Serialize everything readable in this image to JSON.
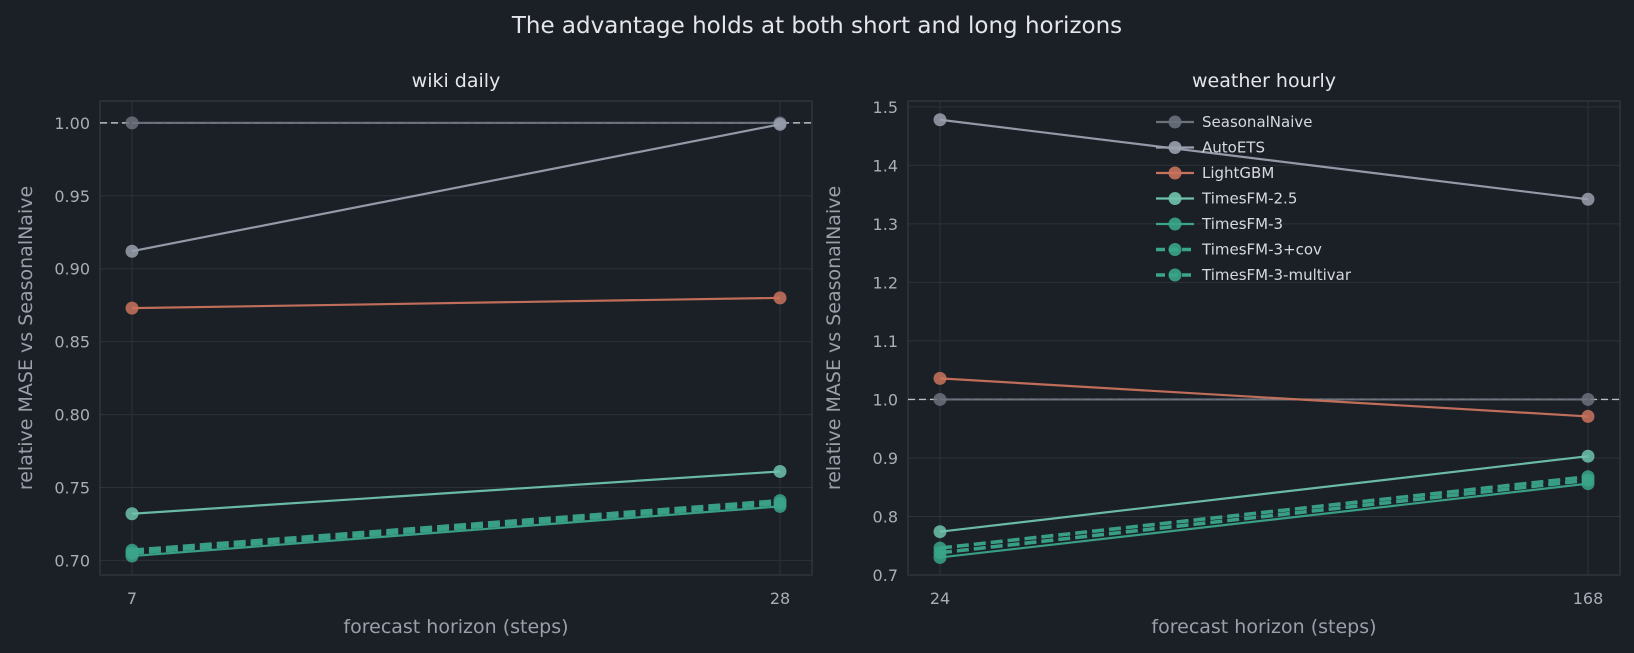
{
  "figure": {
    "title": "The advantage holds at both short and long horizons"
  },
  "colors": {
    "background": "#1b1f26",
    "grid": "#2c313a",
    "spine": "#3a3f48",
    "SeasonalNaive": "#6c717c",
    "AutoETS": "#9aa0ae",
    "LightGBM": "#c9735d",
    "TimesFM-2.5": "#6fc3ad",
    "TimesFM-3": "#3aa58a"
  },
  "chart_data": [
    {
      "type": "line",
      "title": "wiki daily",
      "xlabel": "forecast horizon (steps)",
      "ylabel": "relative MASE vs SeasonalNaive",
      "x": [
        7,
        28
      ],
      "xticks": [
        "7",
        "28"
      ],
      "ylim": [
        0.69,
        1.015
      ],
      "yticks": [
        "0.70",
        "0.75",
        "0.80",
        "0.85",
        "0.90",
        "0.95",
        "1.00"
      ],
      "grid": true,
      "reference_line": 1.0,
      "series": [
        {
          "name": "SeasonalNaive",
          "values": [
            1.0,
            1.0
          ],
          "style": "solid"
        },
        {
          "name": "AutoETS",
          "values": [
            0.912,
            0.999
          ],
          "style": "solid"
        },
        {
          "name": "LightGBM",
          "values": [
            0.873,
            0.88
          ],
          "style": "solid"
        },
        {
          "name": "TimesFM-2.5",
          "values": [
            0.732,
            0.761
          ],
          "style": "solid"
        },
        {
          "name": "TimesFM-3",
          "values": [
            0.703,
            0.737
          ],
          "style": "solid"
        },
        {
          "name": "TimesFM-3+cov",
          "values": [
            0.705,
            0.739
          ],
          "style": "dashed"
        },
        {
          "name": "TimesFM-3-multivar",
          "values": [
            0.707,
            0.741
          ],
          "style": "dashed"
        }
      ]
    },
    {
      "type": "line",
      "title": "weather hourly",
      "xlabel": "forecast horizon (steps)",
      "ylabel": "relative MASE vs SeasonalNaive",
      "x": [
        24,
        168
      ],
      "xticks": [
        "24",
        "168"
      ],
      "ylim": [
        0.7,
        1.51
      ],
      "yticks": [
        "0.7",
        "0.8",
        "0.9",
        "1.0",
        "1.1",
        "1.2",
        "1.3",
        "1.4",
        "1.5"
      ],
      "grid": true,
      "reference_line": 1.0,
      "legend": "upper-center",
      "series": [
        {
          "name": "SeasonalNaive",
          "values": [
            1.0,
            1.0
          ],
          "style": "solid"
        },
        {
          "name": "AutoETS",
          "values": [
            1.478,
            1.342
          ],
          "style": "solid"
        },
        {
          "name": "LightGBM",
          "values": [
            1.036,
            0.971
          ],
          "style": "solid"
        },
        {
          "name": "TimesFM-2.5",
          "values": [
            0.774,
            0.903
          ],
          "style": "solid"
        },
        {
          "name": "TimesFM-3",
          "values": [
            0.73,
            0.856
          ],
          "style": "solid"
        },
        {
          "name": "TimesFM-3+cov",
          "values": [
            0.738,
            0.862
          ],
          "style": "dashed"
        },
        {
          "name": "TimesFM-3-multivar",
          "values": [
            0.746,
            0.868
          ],
          "style": "dashed"
        }
      ]
    }
  ]
}
